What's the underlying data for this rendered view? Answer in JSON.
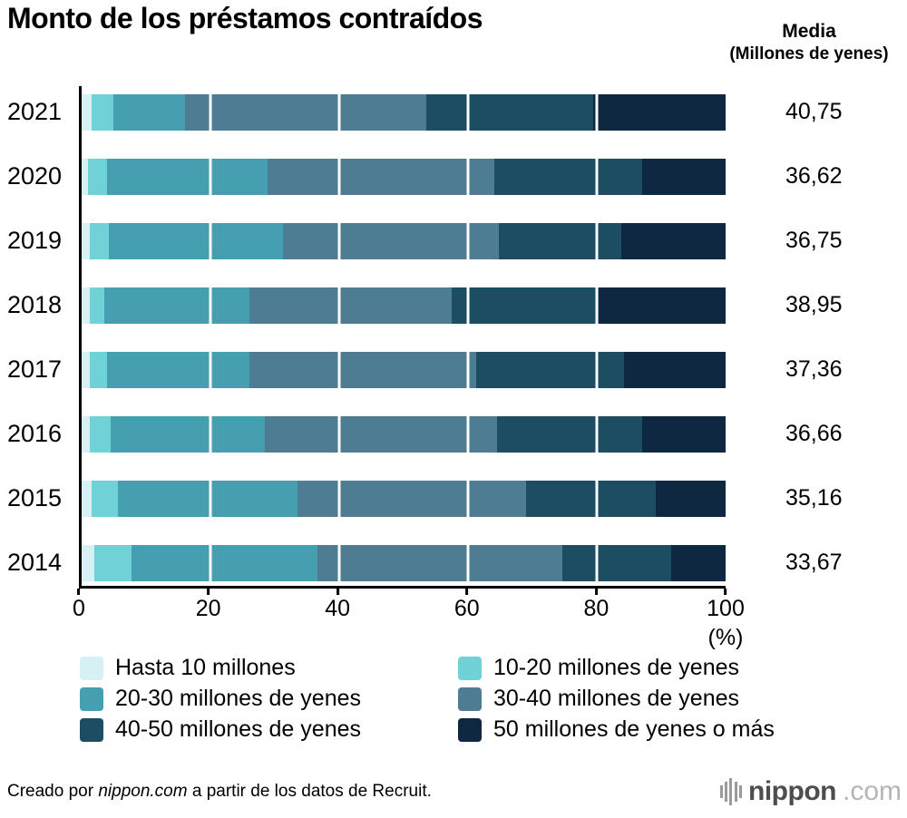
{
  "title": "Monto de los préstamos contraídos",
  "media_header": {
    "line1": "Media",
    "line2": "(Millones de yenes)"
  },
  "axis": {
    "ticks": [
      "0",
      "20",
      "40",
      "60",
      "80",
      "100"
    ],
    "unit": "(%)"
  },
  "chart_data": {
    "type": "bar",
    "orientation": "horizontal",
    "stacked": true,
    "unit": "%",
    "xlim": [
      0,
      100
    ],
    "gridlines": [
      20,
      40,
      60,
      80
    ],
    "categories": [
      "2021",
      "2020",
      "2019",
      "2018",
      "2017",
      "2016",
      "2015",
      "2014"
    ],
    "series": [
      {
        "name": "Hasta 10 millones",
        "color": "#d7f0f3",
        "values": [
          1.5,
          1.0,
          1.2,
          1.2,
          1.2,
          1.3,
          1.5,
          2.0
        ]
      },
      {
        "name": "10-20 millones de yenes",
        "color": "#6fd2d6",
        "values": [
          3.5,
          2.9,
          3.0,
          2.3,
          2.7,
          3.2,
          4.1,
          5.7
        ]
      },
      {
        "name": "20-30 millones de yenes",
        "color": "#459fb1",
        "values": [
          11.0,
          25.0,
          27.1,
          22.5,
          22.1,
          24.0,
          27.9,
          28.9
        ]
      },
      {
        "name": "30-40 millones de yenes",
        "color": "#4e7d93",
        "values": [
          37.5,
          35.2,
          33.5,
          31.5,
          35.3,
          36.0,
          35.5,
          38.0
        ]
      },
      {
        "name": "40-50 millones de yenes",
        "color": "#1d4d62",
        "values": [
          26.0,
          22.9,
          19.0,
          22.8,
          22.9,
          22.5,
          20.2,
          16.9
        ]
      },
      {
        "name": "50 millones de yenes o más",
        "color": "#0d2840",
        "values": [
          20.5,
          13.0,
          16.2,
          19.7,
          15.8,
          13.0,
          10.8,
          8.5
        ]
      }
    ],
    "means": [
      "40,75",
      "36,62",
      "36,75",
      "38,95",
      "37,36",
      "36,66",
      "35,16",
      "33,67"
    ],
    "legend_position": "bottom"
  },
  "footer": {
    "prefix": "Creado por ",
    "brand": "nippon.com",
    "suffix": " a partir de los datos de Recruit."
  },
  "logo": {
    "name": "nippon",
    "tld": ".com"
  }
}
